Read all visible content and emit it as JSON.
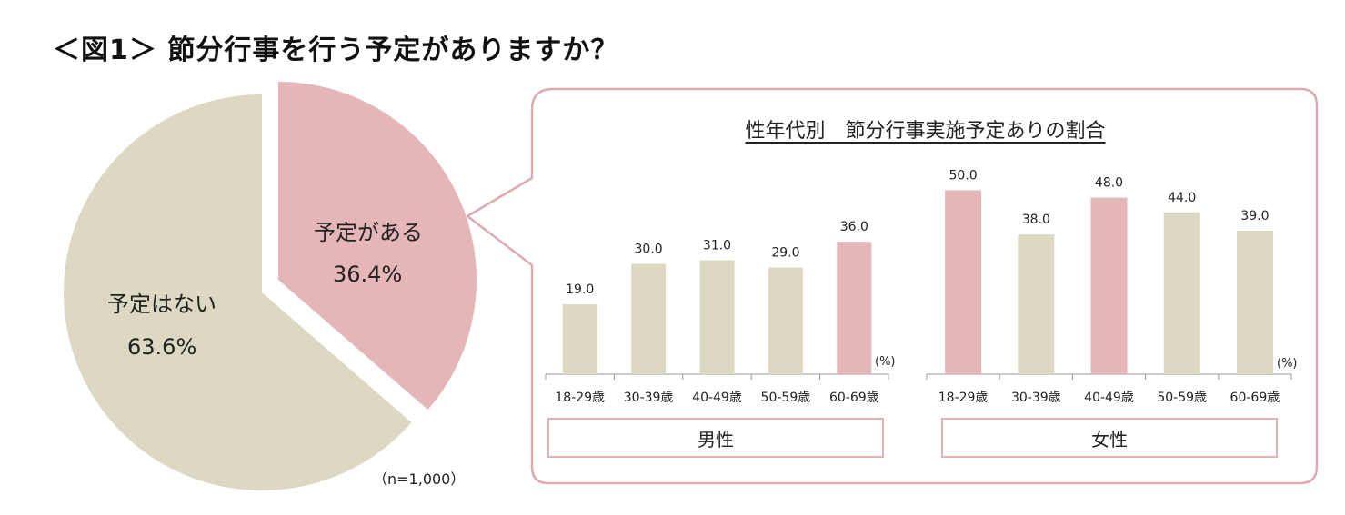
{
  "title": "＜図1＞ 節分行事を行う予定がありますか？",
  "colors": {
    "accent": "#e5b6b7",
    "neutral": "#ddd8c1",
    "border": "#dcaab0"
  },
  "chart_data": [
    {
      "type": "pie",
      "slices": [
        {
          "label": "予定がある",
          "value": 36.4,
          "value_text": "36.4%",
          "color": "#e5b6b7"
        },
        {
          "label": "予定はない",
          "value": 63.6,
          "value_text": "63.6%",
          "color": "#ddd8c1"
        }
      ],
      "note": "（n=1,000）"
    },
    {
      "type": "bar",
      "title": "性年代別　節分行事実施予定ありの割合",
      "unit": "(%)",
      "ylim": [
        0,
        55
      ],
      "groups": [
        {
          "name": "男性",
          "categories": [
            "18-29歳",
            "30-39歳",
            "40-49歳",
            "50-59歳",
            "60-69歳"
          ],
          "values": [
            19.0,
            30.0,
            31.0,
            29.0,
            36.0
          ],
          "labels": [
            "19.0",
            "30.0",
            "31.0",
            "29.0",
            "36.0"
          ],
          "highlight": [
            4
          ]
        },
        {
          "name": "女性",
          "categories": [
            "18-29歳",
            "30-39歳",
            "40-49歳",
            "50-59歳",
            "60-69歳"
          ],
          "values": [
            50.0,
            38.0,
            48.0,
            44.0,
            39.0
          ],
          "labels": [
            "50.0",
            "38.0",
            "48.0",
            "44.0",
            "39.0"
          ],
          "highlight": [
            0,
            2
          ]
        }
      ]
    }
  ]
}
